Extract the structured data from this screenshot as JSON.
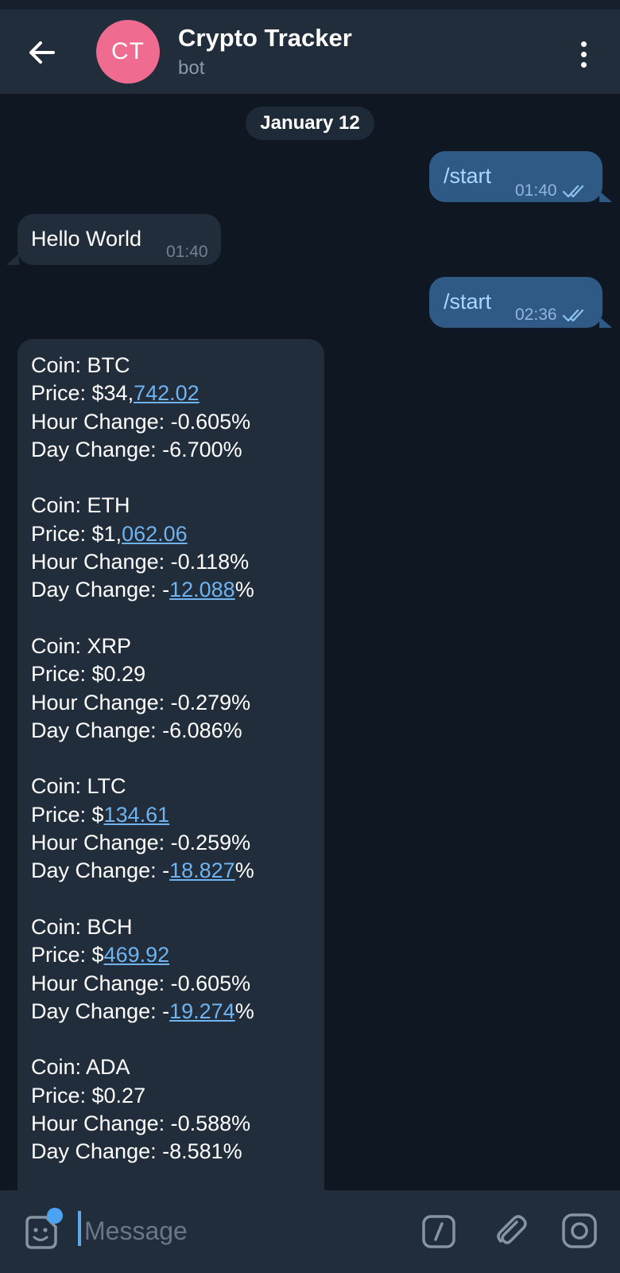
{
  "header": {
    "avatar_initials": "CT",
    "avatar_color": "#ef6b8f",
    "title": "Crypto Tracker",
    "subtitle": "bot"
  },
  "chat": {
    "date_label": "January 12",
    "messages": [
      {
        "direction": "out",
        "text": "/start",
        "time": "01:40",
        "status": "read"
      },
      {
        "direction": "in",
        "text": "Hello World",
        "time": "01:40"
      },
      {
        "direction": "out",
        "text": "/start",
        "time": "02:36",
        "status": "read"
      }
    ],
    "coins": [
      {
        "coin_label": "Coin: BTC",
        "price_prefix": "Price: $34,",
        "price_link": "742.02",
        "hour_change": "Hour Change: -0.605%",
        "day_prefix": "Day Change: -6.700%",
        "day_link": "",
        "day_suffix": ""
      },
      {
        "coin_label": "Coin: ETH",
        "price_prefix": "Price: $1,",
        "price_link": "062.06",
        "hour_change": "Hour Change: -0.118%",
        "day_prefix": "Day Change: -",
        "day_link": "12.088",
        "day_suffix": "%"
      },
      {
        "coin_label": "Coin: XRP",
        "price_prefix": "Price: $0.29",
        "price_link": "",
        "hour_change": "Hour Change: -0.279%",
        "day_prefix": "Day Change: -6.086%",
        "day_link": "",
        "day_suffix": ""
      },
      {
        "coin_label": "Coin: LTC",
        "price_prefix": "Price: $",
        "price_link": "134.61",
        "hour_change": "Hour Change: -0.259%",
        "day_prefix": "Day Change: -",
        "day_link": "18.827",
        "day_suffix": "%"
      },
      {
        "coin_label": "Coin: BCH",
        "price_prefix": "Price: $",
        "price_link": "469.92",
        "hour_change": "Hour Change: -0.605%",
        "day_prefix": "Day Change: -",
        "day_link": "19.274",
        "day_suffix": "%"
      },
      {
        "coin_label": "Coin: ADA",
        "price_prefix": "Price: $0.27",
        "price_link": "",
        "hour_change": "Hour Change: -0.588%",
        "day_prefix": "Day Change: -8.581%",
        "day_link": "",
        "day_suffix": ""
      }
    ]
  },
  "composer": {
    "placeholder": "Message",
    "icons": [
      "sticker-icon",
      "bot-command-icon",
      "attach-icon",
      "camera-icon"
    ]
  },
  "colors": {
    "background": "#0f1822",
    "header": "#212d3b",
    "outgoing_bubble": "#2f5a86",
    "incoming_bubble": "#212d3b",
    "link": "#6fb3f0",
    "accent": "#4ba3f2"
  }
}
